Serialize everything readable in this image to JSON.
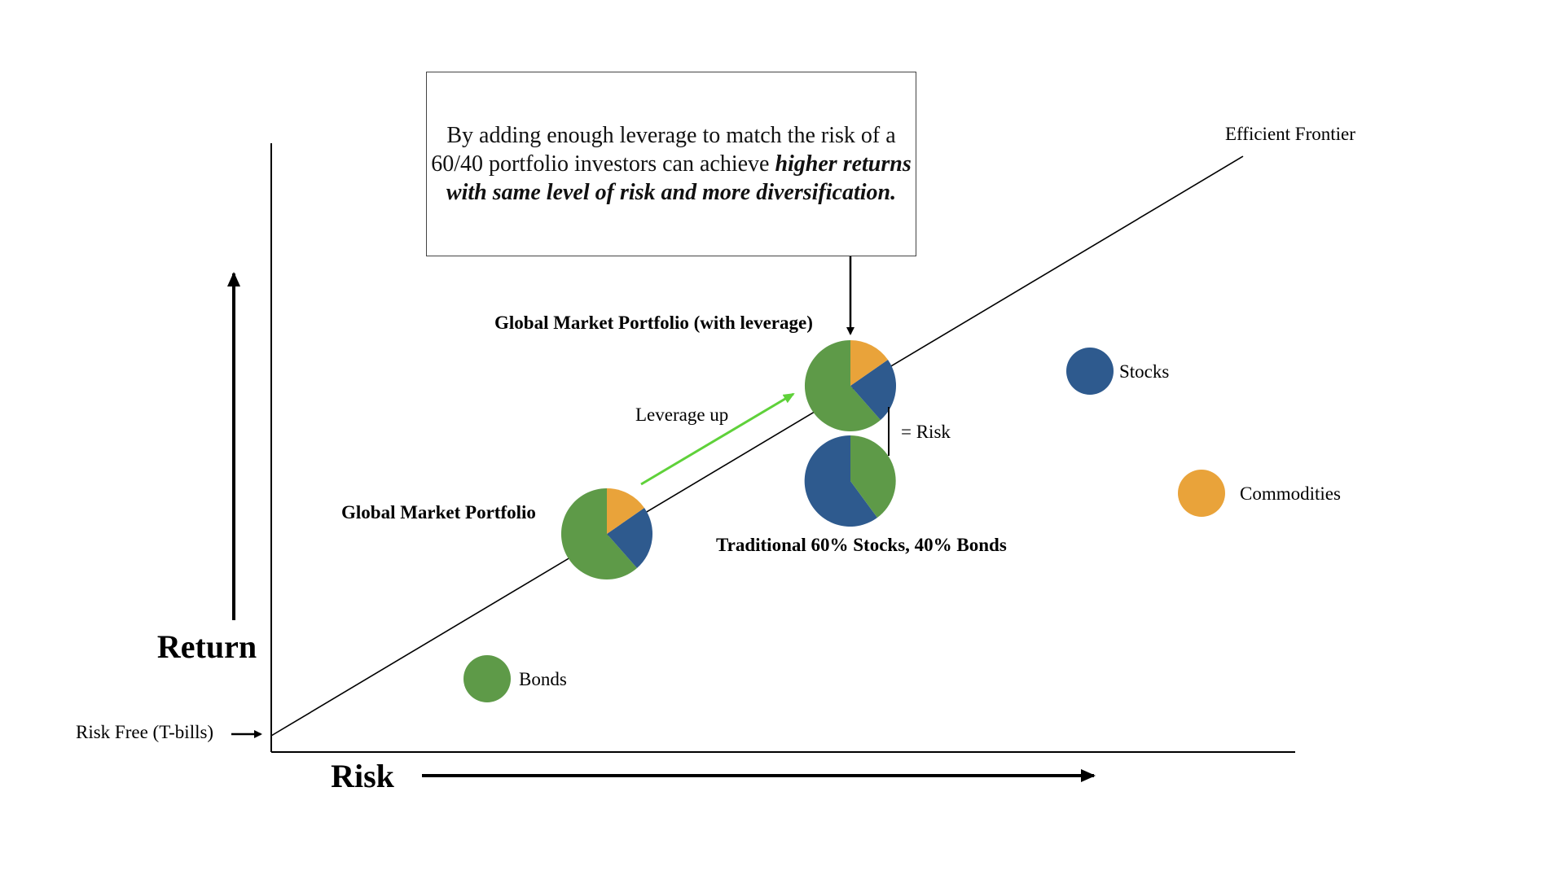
{
  "callout": {
    "text_plain": "By adding enough leverage to match the risk of a 60/40 portfolio investors can achieve ",
    "text_emphasis": "higher returns with same level of risk and more diversification."
  },
  "axes": {
    "x_label": "Risk",
    "y_label": "Return",
    "risk_free_label": "Risk Free (T-bills)"
  },
  "frontier": {
    "label": "Efficient Frontier"
  },
  "assets": [
    {
      "label": "Stocks",
      "color": "#2e5a8e"
    },
    {
      "label": "Commodities",
      "color": "#e9a33a"
    },
    {
      "label": "Bonds",
      "color": "#5e9a48"
    }
  ],
  "portfolios": {
    "global": {
      "label": "Global Market Portfolio"
    },
    "leveraged": {
      "label": "Global Market Portfolio (with leverage)"
    },
    "traditional": {
      "label": "Traditional 60% Stocks, 40% Bonds"
    }
  },
  "annotations": {
    "leverage_up": "Leverage up",
    "equal_risk": "= Risk"
  },
  "colors": {
    "stocks": "#2e5a8e",
    "bonds": "#5e9a48",
    "commodities": "#e9a33a",
    "leverage_arrow": "#5fd13a",
    "axis": "#000000"
  }
}
